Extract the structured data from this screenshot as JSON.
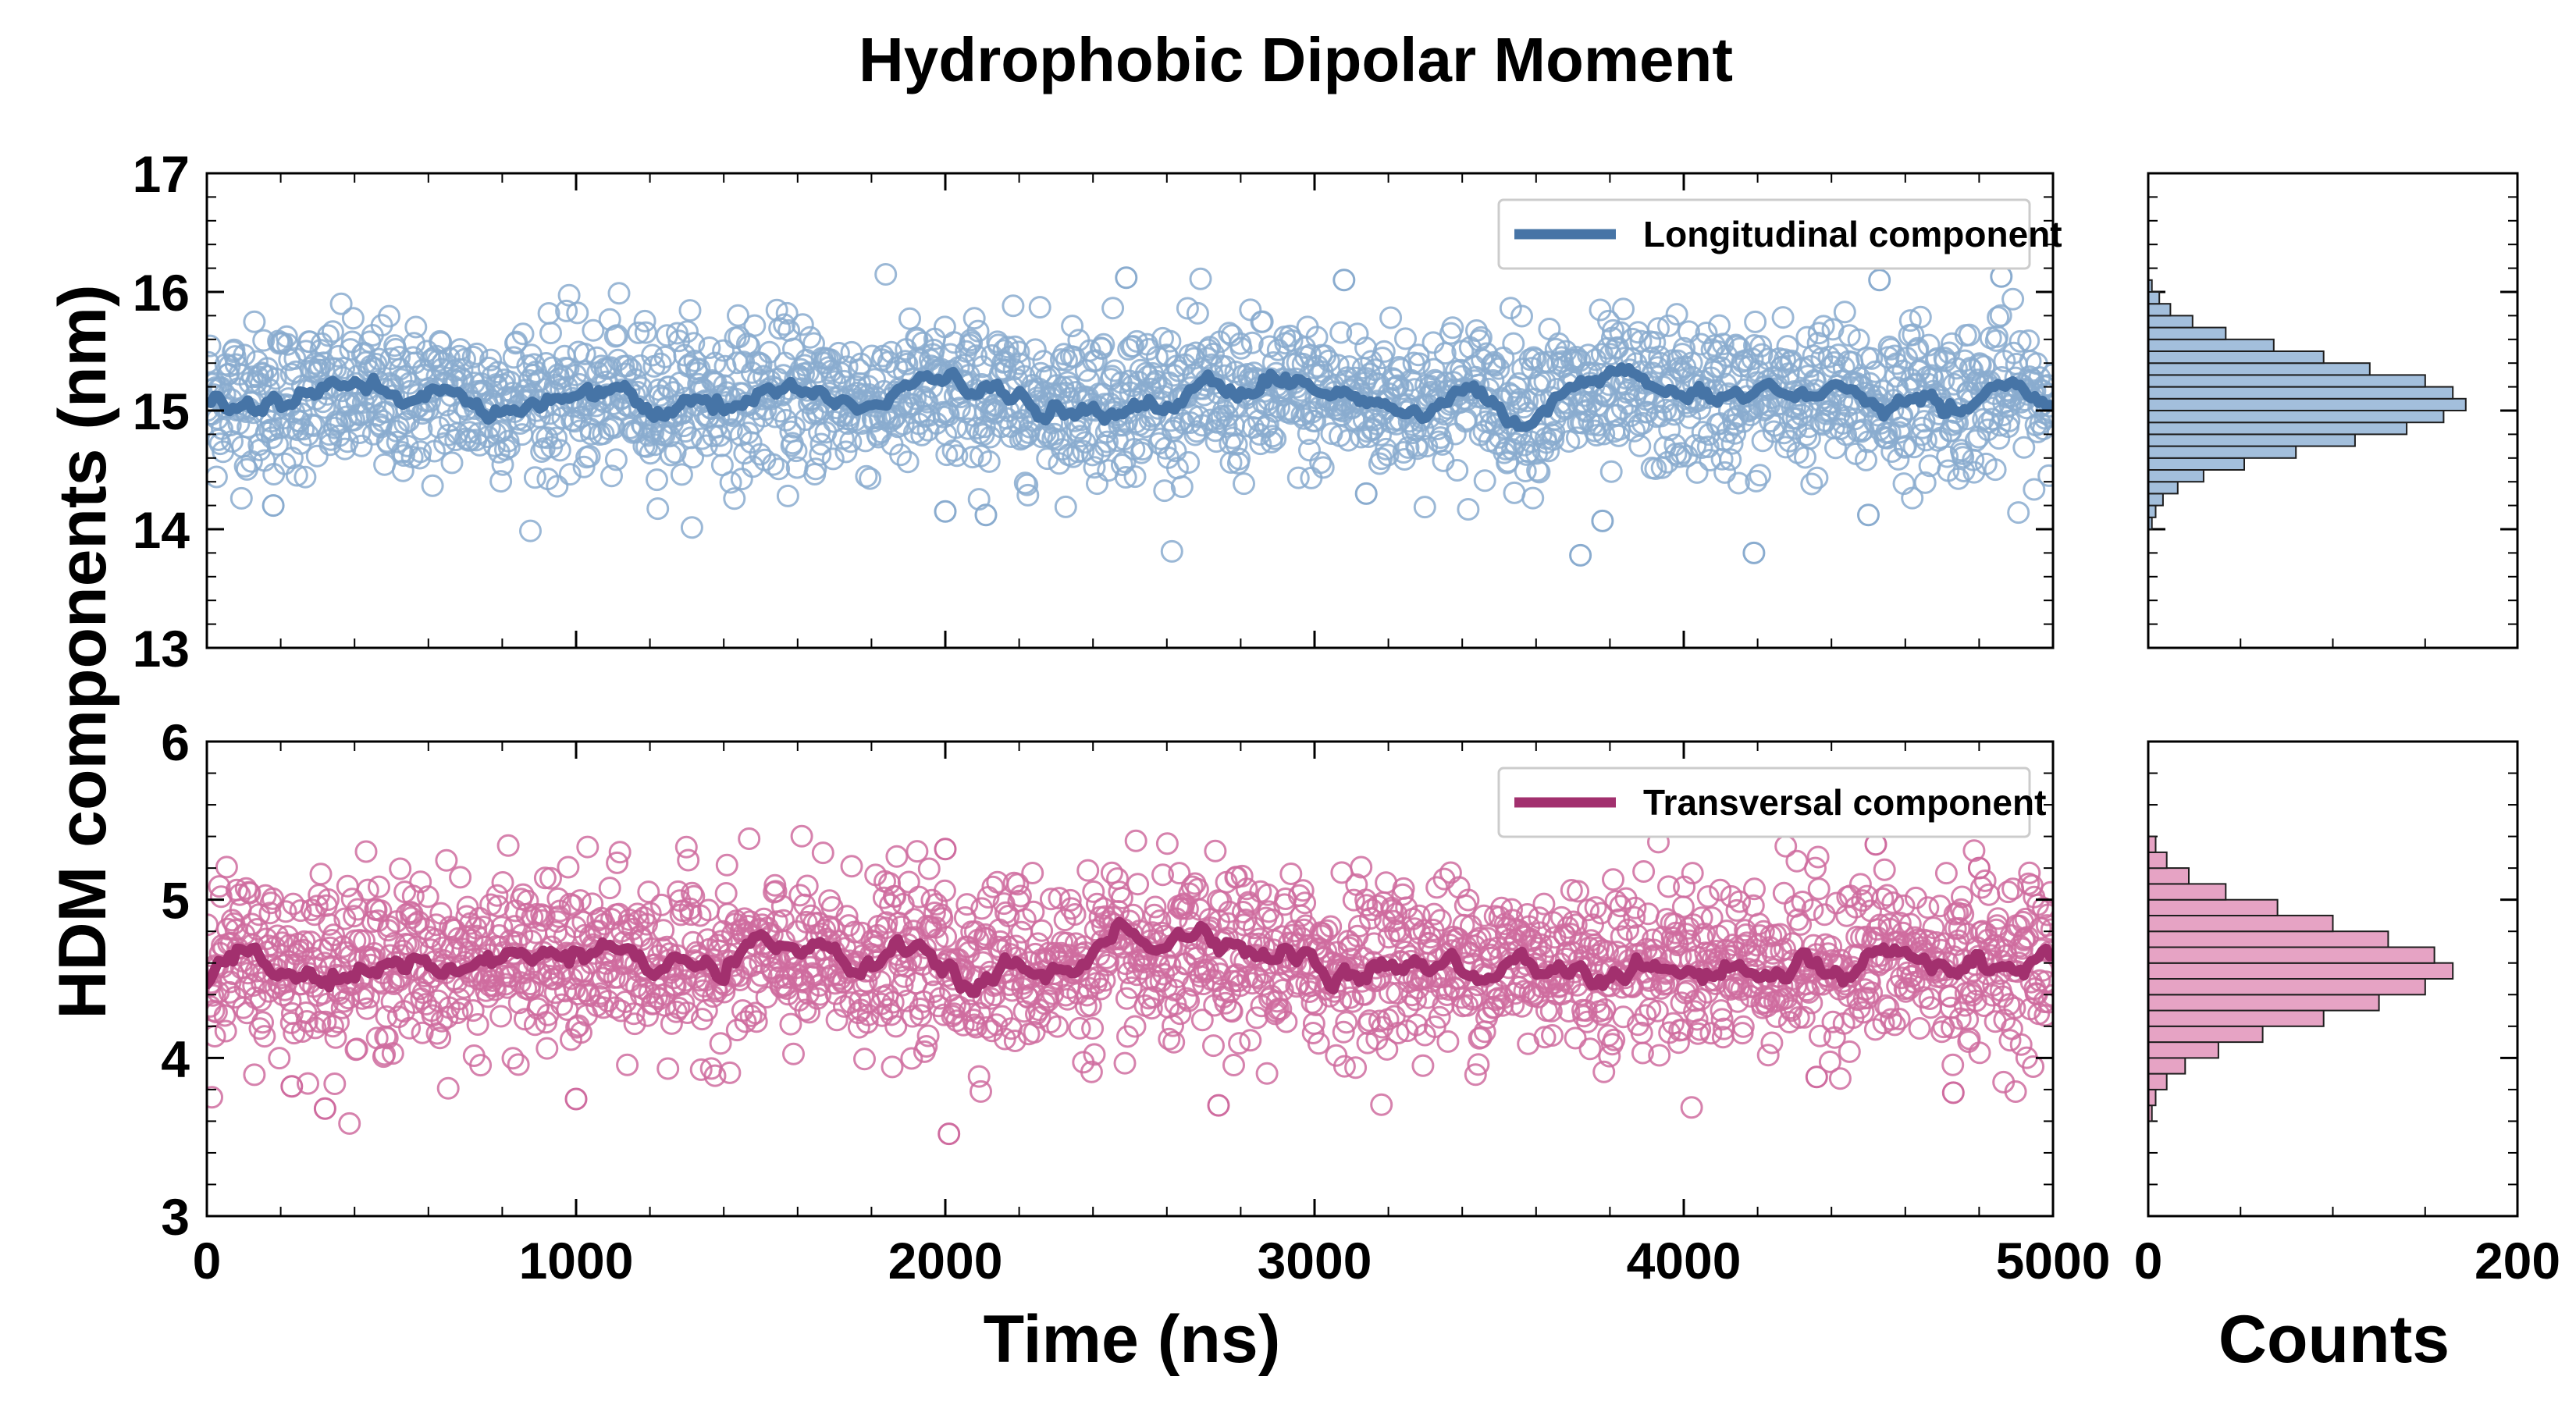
{
  "chart_data": {
    "type": "scatter",
    "title": "Hydrophobic Dipolar Moment",
    "ylabel": "HDM components (nm)",
    "xlabel": "Time (ns)",
    "hist_xlabel": "Counts",
    "xlim": [
      0,
      5000
    ],
    "xticks": [
      "0",
      "1000",
      "2000",
      "3000",
      "4000",
      "5000"
    ],
    "hist_xlim": [
      0,
      200
    ],
    "hist_xticks": [
      "0",
      "200"
    ],
    "panels": [
      {
        "id": "longitudinal",
        "legend": "Longitudinal component",
        "color": "#4674a6",
        "point_color": "#8aaccf",
        "hist_fill": "#a3bfdc",
        "ylim": [
          13,
          17
        ],
        "yticks": [
          "13",
          "14",
          "15",
          "16",
          "17"
        ],
        "mean": 15.1,
        "spread": 0.32,
        "running_mean_spread": 0.09,
        "outliers": [
          {
            "x": 180,
            "y": 14.2
          },
          {
            "x": 2000,
            "y": 14.15
          },
          {
            "x": 2110,
            "y": 14.12
          },
          {
            "x": 3140,
            "y": 14.3
          },
          {
            "x": 3720,
            "y": 13.78
          },
          {
            "x": 3780,
            "y": 14.07
          },
          {
            "x": 4190,
            "y": 13.8
          },
          {
            "x": 4500,
            "y": 14.12
          },
          {
            "x": 3080,
            "y": 16.1
          },
          {
            "x": 2490,
            "y": 16.12
          },
          {
            "x": 4860,
            "y": 16.13
          },
          {
            "x": 4530,
            "y": 16.1
          }
        ],
        "histogram": {
          "bin_centers": [
            14.05,
            14.15,
            14.25,
            14.35,
            14.45,
            14.55,
            14.65,
            14.75,
            14.85,
            14.95,
            15.05,
            15.15,
            15.25,
            15.35,
            15.45,
            15.55,
            15.65,
            15.75,
            15.85,
            15.95,
            16.05
          ],
          "counts": [
            2,
            4,
            8,
            16,
            30,
            52,
            80,
            112,
            140,
            160,
            172,
            165,
            150,
            120,
            95,
            68,
            42,
            24,
            12,
            6,
            2
          ]
        }
      },
      {
        "id": "transversal",
        "legend": "Transversal component",
        "color": "#a2306e",
        "point_color": "#cf6c9f",
        "hist_fill": "#e6a3c4",
        "ylim": [
          3,
          6
        ],
        "yticks": [
          "3",
          "4",
          "5",
          "6"
        ],
        "mean": 4.6,
        "spread": 0.27,
        "running_mean_spread": 0.08,
        "outliers": [
          {
            "x": 2010,
            "y": 3.52
          },
          {
            "x": 320,
            "y": 3.68
          },
          {
            "x": 1000,
            "y": 3.74
          },
          {
            "x": 2740,
            "y": 3.7
          },
          {
            "x": 4360,
            "y": 3.88
          },
          {
            "x": 4730,
            "y": 3.78
          },
          {
            "x": 230,
            "y": 3.82
          },
          {
            "x": 4520,
            "y": 5.35
          },
          {
            "x": 2000,
            "y": 5.32
          },
          {
            "x": 4800,
            "y": 5.2
          }
        ],
        "histogram": {
          "bin_centers": [
            3.65,
            3.75,
            3.85,
            3.95,
            4.05,
            4.15,
            4.25,
            4.35,
            4.45,
            4.55,
            4.65,
            4.75,
            4.85,
            4.95,
            5.05,
            5.15,
            5.25,
            5.35
          ],
          "counts": [
            2,
            4,
            10,
            20,
            38,
            62,
            95,
            125,
            150,
            165,
            155,
            130,
            100,
            70,
            42,
            22,
            10,
            4
          ]
        }
      }
    ]
  }
}
